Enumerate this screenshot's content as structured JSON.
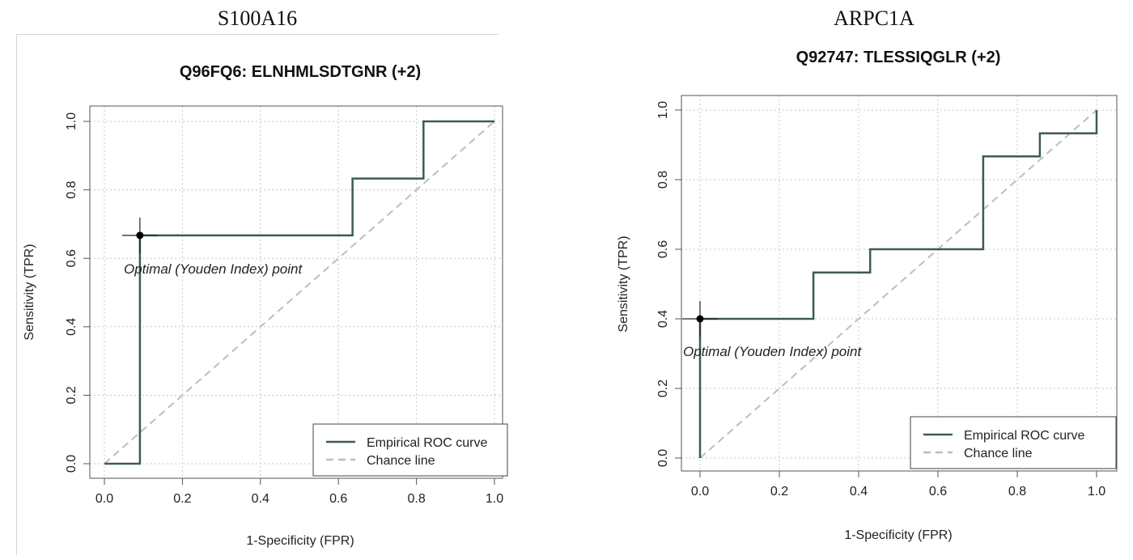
{
  "chart_data": [
    {
      "type": "line",
      "panel_heading": "S100A16",
      "title": "Q96FQ6: ELNHMLSDTGNR (+2)",
      "xlabel": "1-Specificity (FPR)",
      "ylabel": "Sensitivity (TPR)",
      "xlim": [
        0,
        1
      ],
      "ylim": [
        0,
        1
      ],
      "xticks": [
        "0.0",
        "0.2",
        "0.4",
        "0.6",
        "0.8",
        "1.0"
      ],
      "yticks": [
        "0.0",
        "0.2",
        "0.4",
        "0.6",
        "0.8",
        "1.0"
      ],
      "grid": true,
      "legend_position": "bottom-right",
      "series": [
        {
          "name": "Empirical ROC curve",
          "color": "#3d5a58",
          "style": "step",
          "x": [
            0,
            0.091,
            0.091,
            0.636,
            0.636,
            0.818,
            0.818,
            1.0
          ],
          "y": [
            0,
            0,
            0.667,
            0.667,
            0.833,
            0.833,
            1.0,
            1.0
          ]
        },
        {
          "name": "Chance line",
          "color": "#bdbdbd",
          "style": "dashed",
          "x": [
            0,
            1
          ],
          "y": [
            0,
            1
          ]
        }
      ],
      "optimal_point": {
        "x": 0.091,
        "y": 0.667
      },
      "annotation": "Optimal (Youden Index) point"
    },
    {
      "type": "line",
      "panel_heading": "ARPC1A",
      "title": "Q92747: TLESSIQGLR (+2)",
      "xlabel": "1-Specificity (FPR)",
      "ylabel": "Sensitivity (TPR)",
      "xlim": [
        0,
        1
      ],
      "ylim": [
        0,
        1
      ],
      "xticks": [
        "0.0",
        "0.2",
        "0.4",
        "0.6",
        "0.8",
        "1.0"
      ],
      "yticks": [
        "0.0",
        "0.2",
        "0.4",
        "0.6",
        "0.8",
        "1.0"
      ],
      "grid": true,
      "legend_position": "bottom-right",
      "series": [
        {
          "name": "Empirical ROC curve",
          "color": "#3d5a58",
          "style": "step",
          "x": [
            0,
            0,
            0.286,
            0.286,
            0.429,
            0.429,
            0.714,
            0.714,
            0.857,
            0.857,
            1.0,
            1.0
          ],
          "y": [
            0,
            0.4,
            0.4,
            0.533,
            0.533,
            0.6,
            0.6,
            0.867,
            0.867,
            0.933,
            0.933,
            1.0
          ]
        },
        {
          "name": "Chance line",
          "color": "#bdbdbd",
          "style": "dashed",
          "x": [
            0,
            1
          ],
          "y": [
            0,
            1
          ]
        }
      ],
      "optimal_point": {
        "x": 0.0,
        "y": 0.4
      },
      "annotation": "Optimal (Youden Index) point"
    }
  ]
}
